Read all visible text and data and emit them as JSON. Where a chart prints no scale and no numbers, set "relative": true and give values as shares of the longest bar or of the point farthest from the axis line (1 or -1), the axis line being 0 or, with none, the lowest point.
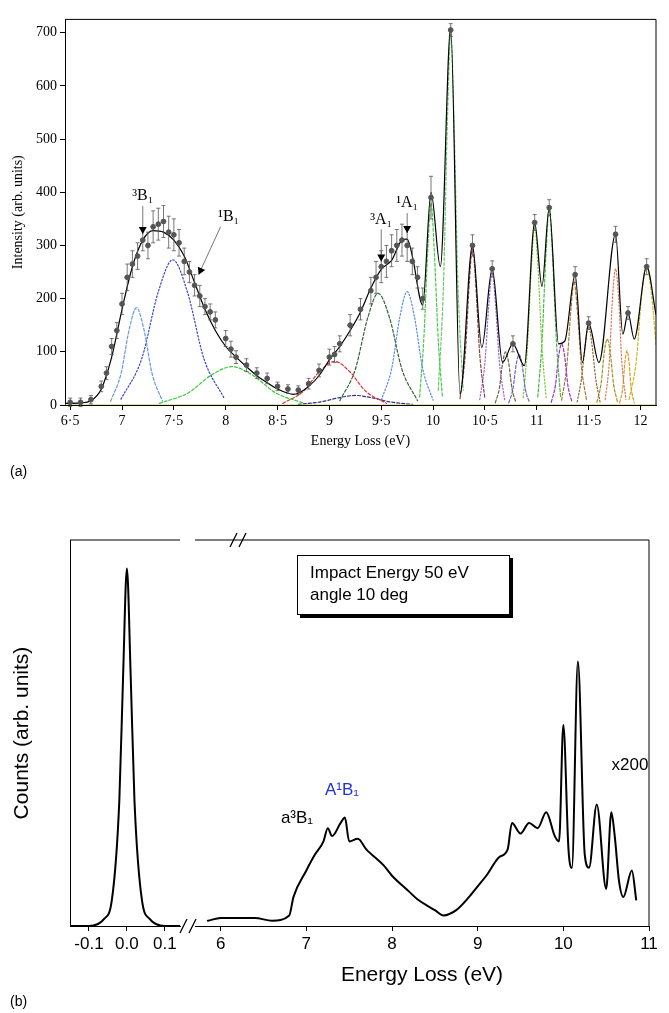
{
  "chart_data": [
    {
      "type": "line",
      "xlabel": "Energy Loss (eV)",
      "ylabel": "Intensity (arb. units)",
      "xlim": [
        6.45,
        12.15
      ],
      "ylim": [
        0,
        725
      ],
      "xticks": [
        {
          "value": 6.5,
          "label": "6·5"
        },
        7,
        {
          "value": 7.5,
          "label": "7·5"
        },
        8,
        {
          "value": 8.5,
          "label": "8·5"
        },
        9,
        {
          "value": 9.5,
          "label": "9·5"
        },
        10,
        {
          "value": 10.5,
          "label": "10·5"
        },
        11,
        {
          "value": 11.5,
          "label": "11·5"
        },
        12
      ],
      "yticks": [
        0,
        100,
        200,
        300,
        400,
        500,
        600,
        700
      ],
      "annotations": [
        {
          "text": "³B₁",
          "x": 7.2,
          "y": 310
        },
        {
          "text": "¹B₁",
          "x": 7.7,
          "y": 230
        },
        {
          "text": "³A₁",
          "x": 9.5,
          "y": 255
        },
        {
          "text": "¹A₁",
          "x": 9.75,
          "y": 312
        },
        "(a)"
      ],
      "series": [
        {
          "type": "scatter",
          "color": "#555555",
          "marker": "circle",
          "x": [
            6.5,
            6.6,
            6.7,
            6.8,
            6.85,
            6.9,
            6.95,
            7.0,
            7.05,
            7.1,
            7.15,
            7.2,
            7.25,
            7.3,
            7.35,
            7.4,
            7.45,
            7.5,
            7.55,
            7.6,
            7.65,
            7.7,
            7.75,
            7.8,
            7.85,
            7.9,
            8.0,
            8.05,
            8.1,
            8.2,
            8.3,
            8.4,
            8.5,
            8.6,
            8.7,
            8.8,
            8.9,
            9.0,
            9.05,
            9.1,
            9.2,
            9.3,
            9.4,
            9.45,
            9.5,
            9.55,
            9.6,
            9.65,
            9.7,
            9.75,
            9.8,
            9.85,
            9.9,
            9.98,
            10.17,
            10.38,
            10.57,
            10.77,
            10.98,
            11.12,
            11.37,
            11.5,
            11.76,
            11.88,
            12.06
          ],
          "values": [
            5,
            5,
            10,
            35,
            60,
            110,
            140,
            190,
            240,
            265,
            280,
            310,
            300,
            335,
            340,
            345,
            325,
            320,
            305,
            270,
            250,
            225,
            205,
            185,
            175,
            160,
            125,
            105,
            90,
            75,
            60,
            50,
            35,
            30,
            28,
            40,
            65,
            90,
            95,
            115,
            150,
            180,
            215,
            240,
            260,
            270,
            290,
            300,
            310,
            300,
            270,
            240,
            200,
            390,
            705,
            300,
            256,
            115,
            343,
            371,
            245,
            154,
            321,
            173,
            260
          ],
          "errors": [
            8,
            8,
            8,
            10,
            12,
            15,
            15,
            20,
            25,
            25,
            25,
            20,
            25,
            30,
            30,
            30,
            30,
            30,
            25,
            25,
            20,
            20,
            20,
            15,
            15,
            15,
            15,
            15,
            12,
            12,
            10,
            10,
            8,
            8,
            8,
            10,
            12,
            15,
            15,
            15,
            20,
            20,
            25,
            30,
            30,
            30,
            30,
            30,
            30,
            30,
            25,
            20,
            20,
            40,
            12,
            20,
            15,
            15,
            15,
            15,
            15,
            12,
            15,
            12,
            15
          ]
        },
        {
          "color": "#000000",
          "line_style": "solid",
          "x": [
            6.45,
            6.6,
            6.7,
            6.8,
            6.9,
            7.0,
            7.1,
            7.2,
            7.3,
            7.4,
            7.5,
            7.6,
            7.7,
            7.8,
            7.9,
            8.0,
            8.1,
            8.2,
            8.3,
            8.4,
            8.5,
            8.6,
            8.65,
            8.7,
            8.8,
            8.9,
            9.0,
            9.1,
            9.2,
            9.3,
            9.4,
            9.5,
            9.6,
            9.7,
            9.75,
            9.8,
            9.9,
            9.98,
            10.07,
            10.17,
            10.26,
            10.38,
            10.47,
            10.57,
            10.67,
            10.77,
            10.88,
            10.98,
            11.05,
            11.12,
            11.21,
            11.27,
            11.37,
            11.44,
            11.5,
            11.6,
            11.76,
            11.83,
            11.88,
            11.94,
            12.06,
            12.15
          ],
          "values": [
            3,
            4,
            8,
            30,
            90,
            180,
            260,
            310,
            328,
            325,
            310,
            280,
            230,
            180,
            140,
            110,
            90,
            72,
            55,
            42,
            30,
            22,
            20,
            22,
            35,
            55,
            85,
            110,
            140,
            175,
            220,
            255,
            272,
            310,
            312,
            280,
            188,
            400,
            260,
            710,
            20,
            300,
            108,
            256,
            80,
            115,
            74,
            343,
            223,
            371,
            115,
            120,
            245,
            80,
            154,
            80,
            321,
            133,
            173,
            124,
            260,
            170
          ]
        },
        {
          "color": "#cccc33",
          "line_style": "solid",
          "x": [
            6.45,
            12.15
          ],
          "values": [
            0,
            0
          ]
        },
        {
          "color": "#6699dd",
          "line_style": "dashed",
          "x": [
            6.89,
            6.99,
            7.07,
            7.14,
            7.21,
            7.29,
            7.39
          ],
          "values": [
            7,
            59,
            143,
            183,
            143,
            59,
            7
          ]
        },
        {
          "color": "#3344cc",
          "line_style": "dotted",
          "x": [
            6.99,
            7.19,
            7.35,
            7.49,
            7.63,
            7.79,
            7.99
          ],
          "values": [
            11,
            87,
            213,
            273,
            213,
            87,
            11
          ]
        },
        {
          "color": "#33cc33",
          "line_style": "dashed",
          "x": [
            7.36,
            7.64,
            7.86,
            8.06,
            8.26,
            8.48,
            8.76
          ],
          "values": [
            3,
            23,
            56,
            72,
            56,
            23,
            3
          ]
        },
        {
          "color": "#dd3333",
          "line_style": "dashed",
          "x": [
            8.55,
            8.75,
            8.91,
            9.05,
            9.19,
            9.35,
            9.55
          ],
          "values": [
            3,
            26,
            64,
            82,
            64,
            26,
            3
          ]
        },
        {
          "color": "#333377",
          "line_style": "dashed",
          "x": [
            8.7,
            8.92,
            9.1,
            9.25,
            9.4,
            9.58,
            9.8
          ],
          "values": [
            1,
            6,
            14,
            18,
            14,
            6,
            1
          ]
        },
        {
          "color": "#336633",
          "line_style": "dashed",
          "x": [
            9.1,
            9.25,
            9.37,
            9.47,
            9.58,
            9.7,
            9.85
          ],
          "values": [
            8,
            67,
            164,
            210,
            164,
            67,
            8
          ]
        },
        {
          "color": "#5588ee",
          "line_style": "dotted",
          "x": [
            9.5,
            9.6,
            9.68,
            9.75,
            9.82,
            9.9,
            10.0
          ],
          "values": [
            9,
            68,
            166,
            213,
            166,
            68,
            9
          ]
        },
        {
          "color": "#44cc44",
          "line_style": "dashed",
          "x": [
            9.87,
            9.91,
            9.95,
            9.98,
            10.01,
            10.05,
            10.09
          ],
          "values": [
            15,
            122,
            296,
            380,
            296,
            122,
            15
          ]
        },
        {
          "color": "#66cc66",
          "line_style": "dashed",
          "x": [
            10.05,
            10.1,
            10.14,
            10.17,
            10.2,
            10.24,
            10.29
          ],
          "values": [
            28,
            224,
            546,
            700,
            546,
            224,
            28
          ]
        },
        {
          "color": "#884444",
          "line_style": "dashed",
          "x": [
            10.26,
            10.31,
            10.35,
            10.38,
            10.41,
            10.45,
            10.5
          ],
          "values": [
            12,
            95,
            232,
            297,
            232,
            95,
            12
          ]
        },
        {
          "color": "#9966dd",
          "line_style": "dotted",
          "x": [
            10.45,
            10.5,
            10.54,
            10.57,
            10.6,
            10.64,
            10.69
          ],
          "values": [
            10,
            80,
            195,
            250,
            195,
            80,
            10
          ]
        },
        {
          "color": "#666644",
          "line_style": "dashed",
          "x": [
            10.6,
            10.64,
            10.67,
            10.7,
            10.73,
            10.76,
            10.8
          ],
          "values": [
            4,
            32,
            78,
            100,
            78,
            32,
            4
          ]
        },
        {
          "color": "#6666cc",
          "line_style": "dashed",
          "x": [
            10.73,
            10.77,
            10.8,
            10.83,
            10.86,
            10.89,
            10.93
          ],
          "values": [
            4,
            30,
            74,
            95,
            74,
            30,
            4
          ]
        },
        {
          "color": "#77cc33",
          "line_style": "dotted",
          "x": [
            10.87,
            10.91,
            10.95,
            10.98,
            11.01,
            11.05,
            11.09
          ],
          "values": [
            14,
            109,
            265,
            340,
            265,
            109,
            14
          ]
        },
        {
          "color": "#44bb44",
          "line_style": "dashed",
          "x": [
            11.01,
            11.05,
            11.09,
            11.12,
            11.15,
            11.19,
            11.23
          ],
          "values": [
            15,
            118,
            289,
            370,
            289,
            118,
            15
          ]
        },
        {
          "color": "#9933cc",
          "line_style": "dashed",
          "x": [
            11.14,
            11.18,
            11.21,
            11.24,
            11.27,
            11.3,
            11.34
          ],
          "values": [
            5,
            37,
            90,
            115,
            90,
            37,
            5
          ]
        },
        {
          "color": "#aa7733",
          "line_style": "dashed",
          "x": [
            11.24,
            11.29,
            11.33,
            11.36,
            11.39,
            11.43,
            11.48
          ],
          "values": [
            9,
            74,
            181,
            232,
            181,
            74,
            9
          ]
        },
        {
          "color": "#886633",
          "line_style": "dotted",
          "x": [
            11.39,
            11.43,
            11.47,
            11.5,
            11.53,
            11.57,
            11.61
          ],
          "values": [
            6,
            48,
            117,
            150,
            117,
            48,
            6
          ]
        },
        {
          "color": "#999922",
          "line_style": "dashed",
          "x": [
            11.58,
            11.62,
            11.65,
            11.68,
            11.71,
            11.74,
            11.78
          ],
          "values": [
            5,
            40,
            97,
            124,
            97,
            40,
            5
          ]
        },
        {
          "color": "#dd7755",
          "line_style": "dotted",
          "x": [
            11.66,
            11.7,
            11.73,
            11.76,
            11.79,
            11.82,
            11.86
          ],
          "values": [
            10,
            82,
            200,
            256,
            200,
            82,
            10
          ]
        },
        {
          "color": "#dd9922",
          "line_style": "dashed",
          "x": [
            11.8,
            11.83,
            11.85,
            11.87,
            11.89,
            11.91,
            11.94
          ],
          "values": [
            4,
            33,
            80,
            102,
            80,
            33,
            4
          ]
        },
        {
          "color": "#ccbb22",
          "line_style": "dashed",
          "x": [
            11.89,
            11.96,
            12.01,
            12.06,
            12.11,
            12.15
          ],
          "values": [
            10,
            83,
            203,
            260,
            203,
            114
          ]
        }
      ]
    },
    {
      "type": "line",
      "ylabel": "Counts (arb. units)",
      "relative": true,
      "tick_labels": "x",
      "xlim": [
        -0.15,
        0.14
      ],
      "xticks": [
        -0.1,
        {
          "value": 0,
          "label": "0.0"
        },
        0.1
      ],
      "annotations": [
        "(b)"
      ],
      "series": [
        {
          "color": "#000000",
          "line_style": "solid",
          "x": [
            -0.15,
            -0.1,
            -0.06,
            -0.04,
            -0.02,
            -0.01,
            0,
            0.01,
            0.02,
            0.04,
            0.06,
            0.1,
            0.14
          ],
          "values": [
            0,
            0,
            0.02,
            0.07,
            0.35,
            0.7,
            1,
            0.7,
            0.35,
            0.07,
            0.02,
            0,
            0
          ]
        }
      ]
    },
    {
      "type": "line",
      "xlabel": "Energy Loss (eV)",
      "relative": true,
      "tick_labels": "x",
      "xlim": [
        5.7,
        11
      ],
      "xticks": [
        6,
        7,
        8,
        9,
        10,
        11
      ],
      "annotations": [
        "a³B₁",
        "A¹B₁",
        "x200",
        "Impact Energy 50 eV",
        "angle 10 deg"
      ],
      "series": [
        {
          "color": "#000000",
          "line_style": "solid",
          "x": [
            5.85,
            6.0,
            6.2,
            6.4,
            6.6,
            6.8,
            6.85,
            7.0,
            7.1,
            7.2,
            7.25,
            7.3,
            7.4,
            7.45,
            7.5,
            7.6,
            7.7,
            7.9,
            8.0,
            8.2,
            8.3,
            8.5,
            8.6,
            8.75,
            8.9,
            9.0,
            9.1,
            9.25,
            9.35,
            9.4,
            9.5,
            9.6,
            9.7,
            9.8,
            9.9,
            9.95,
            10.0,
            10.06,
            10.1,
            10.17,
            10.25,
            10.3,
            10.39,
            10.5,
            10.56,
            10.6,
            10.65,
            10.7,
            10.8,
            10.85
          ],
          "values": [
            0.02,
            0.03,
            0.03,
            0.03,
            0.02,
            0.04,
            0.11,
            0.21,
            0.27,
            0.32,
            0.37,
            0.34,
            0.39,
            0.41,
            0.32,
            0.33,
            0.29,
            0.23,
            0.19,
            0.13,
            0.1,
            0.06,
            0.04,
            0.06,
            0.11,
            0.15,
            0.19,
            0.26,
            0.29,
            0.39,
            0.35,
            0.39,
            0.37,
            0.43,
            0.34,
            0.32,
            0.76,
            0.29,
            0.22,
            1,
            0.27,
            0.22,
            0.46,
            0.14,
            0.43,
            0.34,
            0.17,
            0.11,
            0.21,
            0.1
          ]
        }
      ]
    }
  ]
}
